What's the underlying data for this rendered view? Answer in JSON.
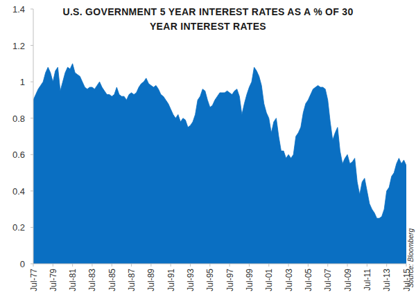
{
  "chart_data": {
    "type": "area",
    "title": "U.S. GOVERNMENT 5 YEAR INTEREST RATES AS A % OF 30 YEAR INTEREST RATES",
    "annotation": "Source: Bloomberg",
    "color": "#0a6fc2",
    "ylim": [
      0,
      1.4
    ],
    "yticks": [
      0,
      0.2,
      0.4,
      0.6,
      0.8,
      1,
      1.2,
      1.4
    ],
    "grid": false,
    "categories": [
      "Jul-77",
      null,
      null,
      null,
      null,
      null,
      null,
      null,
      "Jul-79",
      null,
      null,
      null,
      null,
      null,
      null,
      null,
      "Jul-81",
      null,
      null,
      null,
      null,
      null,
      null,
      null,
      "Jul-83",
      null,
      null,
      null,
      null,
      null,
      null,
      null,
      "Jul-85",
      null,
      null,
      null,
      null,
      null,
      null,
      null,
      "Jul-87",
      null,
      null,
      null,
      null,
      null,
      null,
      null,
      "Jul-89",
      null,
      null,
      null,
      null,
      null,
      null,
      null,
      "Jul-91",
      null,
      null,
      null,
      null,
      null,
      null,
      null,
      "Jul-93",
      null,
      null,
      null,
      null,
      null,
      null,
      null,
      "Jul-95",
      null,
      null,
      null,
      null,
      null,
      null,
      null,
      "Jul-97",
      null,
      null,
      null,
      null,
      null,
      null,
      null,
      "Jul-99",
      null,
      null,
      null,
      null,
      null,
      null,
      null,
      "Jul-01",
      null,
      null,
      null,
      null,
      null,
      null,
      null,
      "Jul-03",
      null,
      null,
      null,
      null,
      null,
      null,
      null,
      "Jul-05",
      null,
      null,
      null,
      null,
      null,
      null,
      null,
      "Jul-07",
      null,
      null,
      null,
      null,
      null,
      null,
      null,
      "Jul-09",
      null,
      null,
      null,
      null,
      null,
      null,
      null,
      "Jul-11",
      null,
      null,
      null,
      null,
      null,
      null,
      null,
      "Jul-13",
      null,
      null,
      null,
      null,
      null,
      null,
      null,
      "Jul-15"
    ],
    "values": [
      0.9,
      0.93,
      0.96,
      0.98,
      1.0,
      1.05,
      1.08,
      1.05,
      1.0,
      1.06,
      1.08,
      0.95,
      1.0,
      1.05,
      1.08,
      1.07,
      1.1,
      1.05,
      1.04,
      1.03,
      1.0,
      0.97,
      0.96,
      0.97,
      0.97,
      0.96,
      0.98,
      1.0,
      0.97,
      0.95,
      0.93,
      0.93,
      0.92,
      0.93,
      0.97,
      0.93,
      0.92,
      0.92,
      0.9,
      0.93,
      0.94,
      0.93,
      0.94,
      0.97,
      0.99,
      1.0,
      1.02,
      0.99,
      0.98,
      0.97,
      0.98,
      0.96,
      0.93,
      0.92,
      0.9,
      0.88,
      0.85,
      0.82,
      0.8,
      0.82,
      0.78,
      0.8,
      0.79,
      0.75,
      0.76,
      0.78,
      0.82,
      0.9,
      0.92,
      0.96,
      0.95,
      0.9,
      0.86,
      0.87,
      0.9,
      0.92,
      0.94,
      0.94,
      0.94,
      0.95,
      0.94,
      0.93,
      0.95,
      0.96,
      0.92,
      0.82,
      0.88,
      0.93,
      0.97,
      1.0,
      1.08,
      1.06,
      1.03,
      0.98,
      0.88,
      0.83,
      0.8,
      0.72,
      0.78,
      0.8,
      0.7,
      0.62,
      0.62,
      0.58,
      0.6,
      0.58,
      0.6,
      0.7,
      0.72,
      0.75,
      0.83,
      0.88,
      0.9,
      0.93,
      0.96,
      0.97,
      0.98,
      0.97,
      0.97,
      0.96,
      0.9,
      0.78,
      0.68,
      0.72,
      0.75,
      0.62,
      0.55,
      0.58,
      0.6,
      0.55,
      0.56,
      0.58,
      0.45,
      0.38,
      0.45,
      0.47,
      0.4,
      0.33,
      0.3,
      0.28,
      0.25,
      0.25,
      0.26,
      0.3,
      0.4,
      0.42,
      0.48,
      0.5,
      0.55,
      0.58,
      0.55,
      0.57,
      0.54
    ]
  }
}
